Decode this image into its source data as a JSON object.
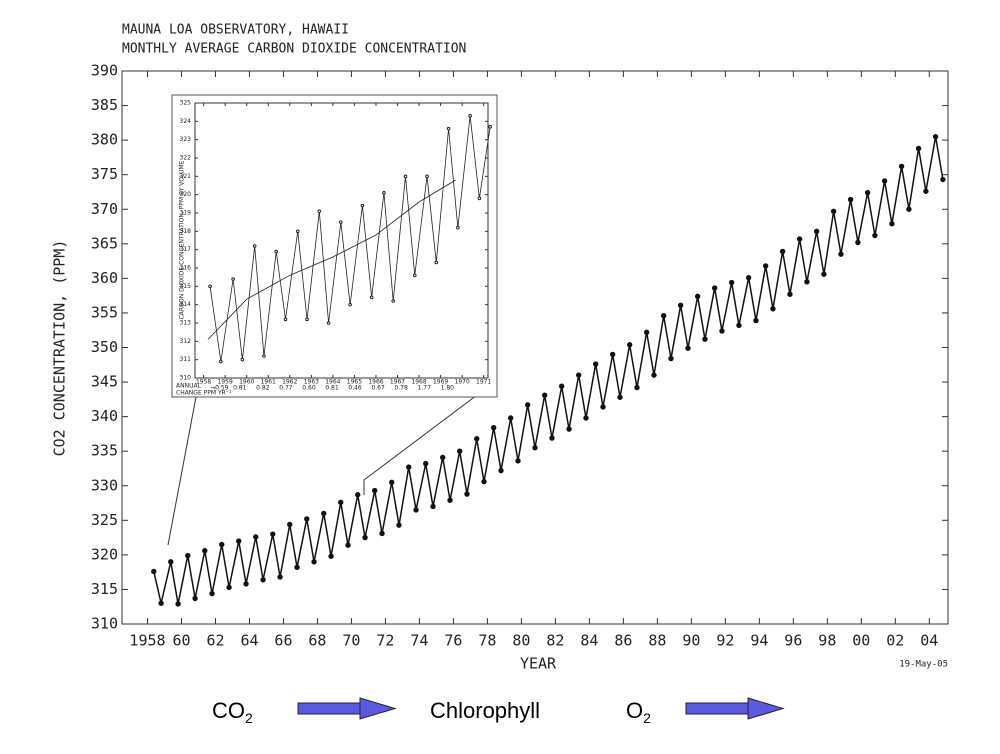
{
  "chart_data": [
    {
      "type": "line",
      "title": "MAUNA LOA OBSERVATORY, HAWAII",
      "subtitle": "MONTHLY AVERAGE CARBON DIOXIDE CONCENTRATION",
      "y_label": "CO2 CONCENTRATION, (PPM)",
      "x_label": "YEAR",
      "date_note": "19-May-05",
      "xlim": [
        1956.5,
        2005.1
      ],
      "ylim": [
        310,
        390
      ],
      "xticks": [
        1958,
        {
          "value": 1960,
          "label": "60"
        },
        {
          "value": 1962,
          "label": "62"
        },
        {
          "value": 1964,
          "label": "64"
        },
        {
          "value": 1966,
          "label": "66"
        },
        {
          "value": 1968,
          "label": "68"
        },
        {
          "value": 1970,
          "label": "70"
        },
        {
          "value": 1972,
          "label": "72"
        },
        {
          "value": 1974,
          "label": "74"
        },
        {
          "value": 1976,
          "label": "76"
        },
        {
          "value": 1978,
          "label": "78"
        },
        {
          "value": 1980,
          "label": "80"
        },
        {
          "value": 1982,
          "label": "82"
        },
        {
          "value": 1984,
          "label": "84"
        },
        {
          "value": 1986,
          "label": "86"
        },
        {
          "value": 1988,
          "label": "88"
        },
        {
          "value": 1990,
          "label": "90"
        },
        {
          "value": 1992,
          "label": "92"
        },
        {
          "value": 1994,
          "label": "94"
        },
        {
          "value": 1996,
          "label": "96"
        },
        {
          "value": 1998,
          "label": "98"
        },
        {
          "value": 2000,
          "label": "00"
        },
        {
          "value": 2002,
          "label": "02"
        },
        {
          "value": 2004,
          "label": "04"
        }
      ],
      "yticks": [
        310,
        315,
        320,
        325,
        330,
        335,
        340,
        345,
        350,
        355,
        360,
        365,
        370,
        375,
        380,
        385,
        390
      ],
      "series": [
        {
          "name": "CO2",
          "color": "#111111",
          "x": [
            1958.37,
            1958.8,
            1959.37,
            1959.8,
            1960.37,
            1960.8,
            1961.37,
            1961.8,
            1962.37,
            1962.8,
            1963.37,
            1963.8,
            1964.37,
            1964.8,
            1965.37,
            1965.8,
            1966.37,
            1966.8,
            1967.37,
            1967.8,
            1968.37,
            1968.8,
            1969.37,
            1969.8,
            1970.37,
            1970.8,
            1971.37,
            1971.8,
            1972.37,
            1972.8,
            1973.37,
            1973.8,
            1974.37,
            1974.8,
            1975.37,
            1975.8,
            1976.37,
            1976.8,
            1977.37,
            1977.8,
            1978.37,
            1978.8,
            1979.37,
            1979.8,
            1980.37,
            1980.8,
            1981.37,
            1981.8,
            1982.37,
            1982.8,
            1983.37,
            1983.8,
            1984.37,
            1984.8,
            1985.37,
            1985.8,
            1986.37,
            1986.8,
            1987.37,
            1987.8,
            1988.37,
            1988.8,
            1989.37,
            1989.8,
            1990.37,
            1990.8,
            1991.37,
            1991.8,
            1992.37,
            1992.8,
            1993.37,
            1993.8,
            1994.37,
            1994.8,
            1995.37,
            1995.8,
            1996.37,
            1996.8,
            1997.37,
            1997.8,
            1998.37,
            1998.8,
            1999.37,
            1999.8,
            2000.37,
            2000.8,
            2001.37,
            2001.8,
            2002.37,
            2002.8,
            2003.37,
            2003.8,
            2004.37,
            2004.8
          ],
          "values": [
            317.6,
            313.0,
            319.0,
            312.9,
            319.9,
            313.7,
            320.6,
            314.4,
            321.5,
            315.3,
            322.0,
            315.8,
            322.6,
            316.4,
            323.0,
            316.8,
            324.4,
            318.2,
            325.2,
            319.0,
            326.0,
            319.8,
            327.6,
            321.4,
            328.7,
            322.5,
            329.3,
            323.1,
            330.5,
            324.3,
            332.7,
            326.5,
            333.2,
            327.0,
            334.1,
            327.9,
            335.0,
            328.8,
            336.8,
            330.6,
            338.4,
            332.2,
            339.8,
            333.6,
            341.7,
            335.5,
            343.1,
            336.9,
            344.4,
            338.2,
            346.0,
            339.8,
            347.6,
            341.4,
            349.0,
            342.8,
            350.4,
            344.2,
            352.2,
            346.0,
            354.6,
            348.4,
            356.1,
            349.9,
            357.4,
            351.2,
            358.6,
            352.4,
            359.4,
            353.2,
            360.1,
            353.9,
            361.8,
            355.6,
            363.9,
            357.7,
            365.7,
            359.5,
            366.8,
            360.6,
            369.7,
            363.5,
            371.4,
            365.2,
            372.4,
            366.2,
            374.1,
            367.9,
            376.2,
            370.0,
            378.8,
            372.6,
            380.5,
            374.3
          ]
        }
      ]
    },
    {
      "type": "line",
      "y_label": "CARBON DIOXIDE CONCENTRATION, PPM BY VOLUME",
      "annual_change_label": [
        "ANNUAL",
        "CHANGE PPM YR⁻¹"
      ],
      "annual_change": [
        "→0.59",
        "0.81",
        "0.82",
        "0.77",
        "0.60",
        "0.81",
        "0.46",
        "0.67",
        "0.78",
        "1.77",
        "1.80"
      ],
      "xlim": [
        1957.6,
        1971.2
      ],
      "ylim": [
        310,
        325
      ],
      "xticks": [
        1958,
        1959,
        1960,
        1961,
        1962,
        1963,
        1964,
        1965,
        1966,
        1967,
        1968,
        1969,
        1970,
        1971
      ],
      "yticks": [
        310,
        311,
        312,
        313,
        314,
        315,
        316,
        317,
        318,
        319,
        320,
        321,
        322,
        323,
        324,
        325
      ],
      "series": [
        {
          "name": "monthly",
          "color": "#222222",
          "markers": true,
          "x": [
            1958.3,
            1958.8,
            1959.37,
            1959.8,
            1960.37,
            1960.8,
            1961.37,
            1961.8,
            1962.37,
            1962.8,
            1963.37,
            1963.8,
            1964.37,
            1964.8,
            1965.37,
            1965.8,
            1966.37,
            1966.8,
            1967.37,
            1967.8,
            1968.37,
            1968.8,
            1969.37,
            1969.8,
            1970.37,
            1970.8,
            1971.3
          ],
          "values": [
            315.0,
            310.9,
            315.4,
            311.0,
            317.2,
            311.2,
            316.9,
            313.2,
            318.0,
            313.2,
            319.1,
            313.0,
            318.5,
            314.0,
            319.4,
            314.4,
            320.1,
            314.2,
            321.0,
            315.6,
            321.0,
            316.3,
            323.6,
            318.2,
            324.3,
            319.8,
            323.7
          ]
        },
        {
          "name": "trend",
          "color": "#222222",
          "markers": false,
          "x": [
            1958.2,
            1960,
            1962,
            1964,
            1966,
            1968,
            1969.7
          ],
          "values": [
            312.1,
            314.3,
            315.6,
            316.6,
            317.8,
            319.6,
            320.8
          ]
        }
      ]
    }
  ],
  "footer": {
    "co2": {
      "base": "CO",
      "sub": "2"
    },
    "chlorophyll": "Chlorophyll",
    "o2": {
      "base": "O",
      "sub": "2"
    }
  }
}
